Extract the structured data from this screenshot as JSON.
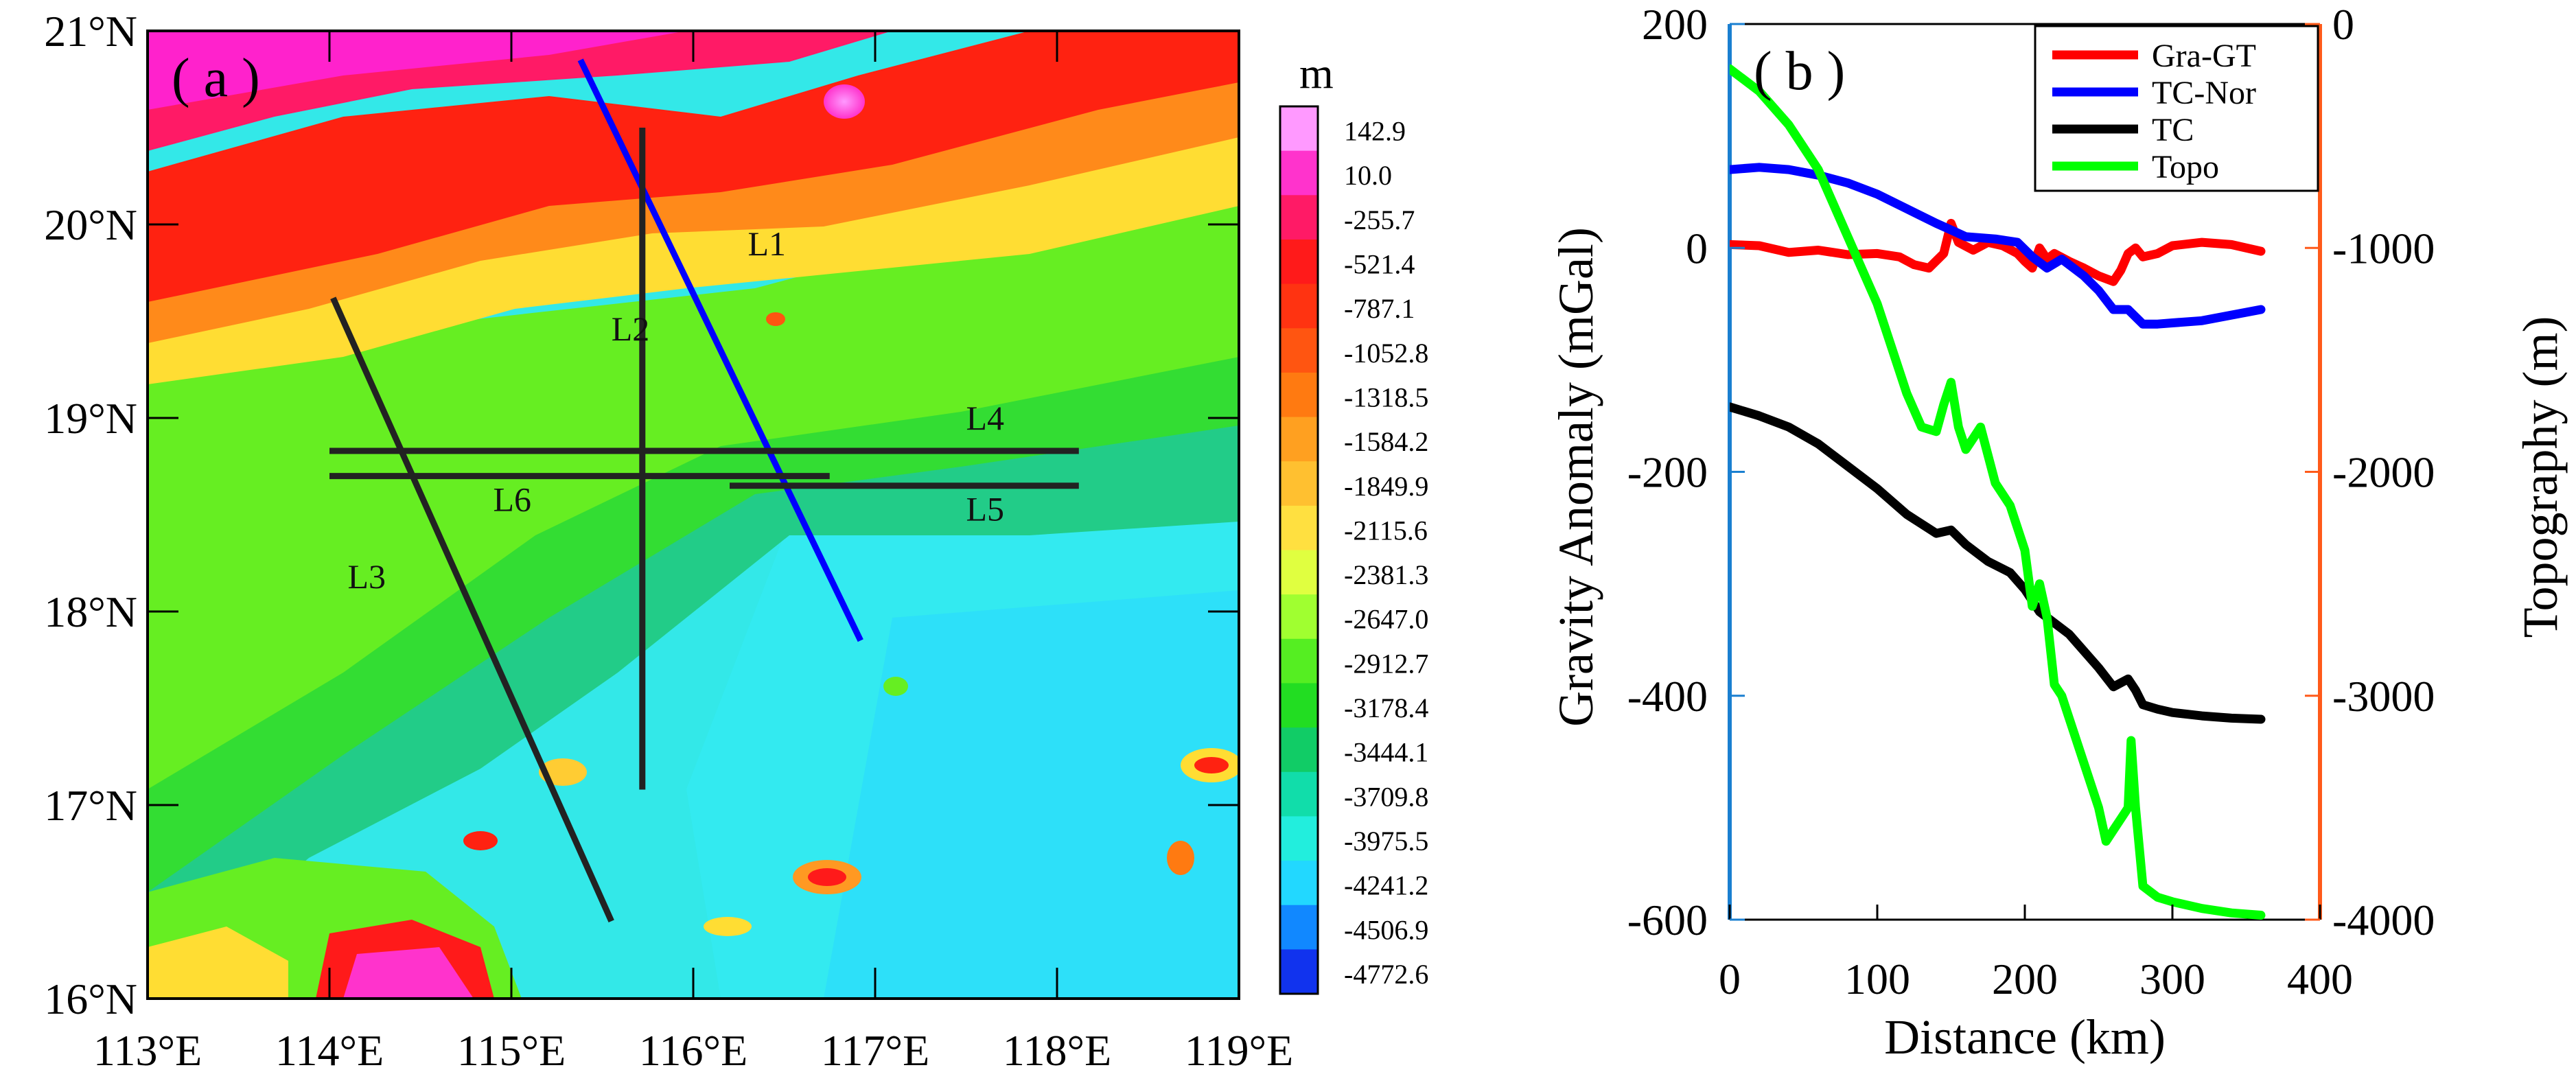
{
  "chart_data": [
    {
      "type": "heatmap",
      "panel_label": "( a )",
      "x_ticks": [
        "113°E",
        "114°E",
        "115°E",
        "116°E",
        "117°E",
        "118°E",
        "119°E"
      ],
      "y_ticks": [
        "21°N",
        "20°N",
        "19°N",
        "18°N",
        "17°N",
        "16°N"
      ],
      "xlim": [
        113,
        119
      ],
      "ylim": [
        16,
        21
      ],
      "colorbar": {
        "unit": "m",
        "labels": [
          "142.9",
          "10.0",
          "-255.7",
          "-521.4",
          "-787.1",
          "-1052.8",
          "-1318.5",
          "-1584.2",
          "-1849.9",
          "-2115.6",
          "-2381.3",
          "-2647.0",
          "-2912.7",
          "-3178.4",
          "-3444.1",
          "-3709.8",
          "-3975.5",
          "-4241.2",
          "-4506.9",
          "-4772.6"
        ],
        "colors": [
          "#ff99ff",
          "#ff33cc",
          "#ff1a66",
          "#ff1a1a",
          "#ff3311",
          "#ff5511",
          "#ff7a11",
          "#ffa020",
          "#ffc030",
          "#ffe040",
          "#e0ff40",
          "#a0ff30",
          "#55ee22",
          "#22dd22",
          "#11cc66",
          "#11ddaa",
          "#22eedd",
          "#22d8ff",
          "#1188ff",
          "#1133ee"
        ]
      },
      "profiles": [
        {
          "name": "L1",
          "color": "#0000ff",
          "start": [
            115.38,
            20.85
          ],
          "end": [
            116.92,
            17.85
          ]
        },
        {
          "name": "L2",
          "color": "#222222",
          "start": [
            115.72,
            20.5
          ],
          "end": [
            115.72,
            17.08
          ]
        },
        {
          "name": "L3",
          "color": "#222222",
          "start": [
            114.02,
            19.62
          ],
          "end": [
            115.55,
            16.4
          ]
        },
        {
          "name": "L4",
          "color": "#222222",
          "start": [
            114.0,
            18.83
          ],
          "end": [
            118.12,
            18.83
          ]
        },
        {
          "name": "L5",
          "color": "#222222",
          "start": [
            116.2,
            18.65
          ],
          "end": [
            118.12,
            18.65
          ]
        },
        {
          "name": "L6",
          "color": "#222222",
          "start": [
            114.0,
            18.7
          ],
          "end": [
            116.75,
            18.7
          ]
        }
      ]
    },
    {
      "type": "line",
      "panel_label": "( b )",
      "xlabel": "Distance (km)",
      "ylabel": "Gravity Anomaly (mGal)",
      "y2label": "Topography (m)",
      "xlim": [
        0,
        400
      ],
      "ylim": [
        -600,
        200
      ],
      "y2lim": [
        -4000,
        0
      ],
      "x_ticks": [
        "0",
        "100",
        "200",
        "300",
        "400"
      ],
      "y_ticks": [
        "200",
        "0",
        "-200",
        "-400",
        "-600"
      ],
      "y2_ticks": [
        "0",
        "-1000",
        "-2000",
        "-3000",
        "-4000"
      ],
      "legend_position": "top-right",
      "series": [
        {
          "name": "Gra-GT",
          "color": "#ff0000",
          "axis": "left",
          "x": [
            0,
            20,
            40,
            60,
            80,
            100,
            115,
            125,
            135,
            145,
            150,
            155,
            165,
            175,
            185,
            195,
            200,
            205,
            210,
            215,
            220,
            230,
            240,
            250,
            260,
            265,
            270,
            275,
            280,
            290,
            300,
            320,
            340,
            360
          ],
          "y": [
            3,
            2,
            -4,
            -2,
            -6,
            -5,
            -8,
            -15,
            -18,
            -5,
            22,
            5,
            -2,
            5,
            2,
            -5,
            -12,
            -18,
            0,
            -10,
            -5,
            -12,
            -18,
            -25,
            -30,
            -20,
            -5,
            0,
            -8,
            -5,
            2,
            5,
            3,
            -3
          ]
        },
        {
          "name": "TC-Nor",
          "color": "#0000ff",
          "axis": "left",
          "x": [
            0,
            20,
            40,
            60,
            80,
            100,
            120,
            140,
            150,
            160,
            180,
            195,
            205,
            215,
            225,
            240,
            250,
            260,
            270,
            280,
            290,
            300,
            320,
            340,
            360
          ],
          "y": [
            70,
            72,
            70,
            65,
            58,
            48,
            35,
            22,
            16,
            10,
            8,
            5,
            -8,
            -18,
            -10,
            -25,
            -38,
            -55,
            -55,
            -68,
            -68,
            -67,
            -65,
            -60,
            -55
          ]
        },
        {
          "name": "TC",
          "color": "#000000",
          "axis": "left",
          "x": [
            0,
            20,
            40,
            60,
            80,
            100,
            120,
            140,
            150,
            160,
            175,
            190,
            200,
            210,
            220,
            230,
            240,
            250,
            260,
            270,
            275,
            280,
            290,
            300,
            320,
            340,
            360
          ],
          "y": [
            -142,
            -150,
            -160,
            -175,
            -195,
            -215,
            -238,
            -255,
            -252,
            -265,
            -280,
            -290,
            -305,
            -325,
            -335,
            -345,
            -360,
            -375,
            -392,
            -385,
            -395,
            -408,
            -412,
            -415,
            -418,
            -420,
            -421
          ]
        },
        {
          "name": "Topo",
          "color": "#00ff00",
          "axis": "right",
          "x": [
            0,
            20,
            40,
            60,
            80,
            100,
            120,
            130,
            140,
            145,
            150,
            155,
            160,
            165,
            170,
            180,
            190,
            200,
            205,
            210,
            215,
            220,
            225,
            230,
            240,
            250,
            255,
            260,
            265,
            270,
            272,
            275,
            280,
            290,
            300,
            320,
            340,
            360
          ],
          "y": [
            -200,
            -300,
            -450,
            -650,
            -950,
            -1250,
            -1650,
            -1800,
            -1820,
            -1700,
            -1600,
            -1800,
            -1900,
            -1850,
            -1800,
            -2050,
            -2150,
            -2350,
            -2600,
            -2500,
            -2650,
            -2950,
            -3000,
            -3100,
            -3300,
            -3500,
            -3650,
            -3600,
            -3550,
            -3500,
            -3200,
            -3500,
            -3850,
            -3900,
            -3920,
            -3950,
            -3970,
            -3980
          ]
        }
      ]
    }
  ]
}
